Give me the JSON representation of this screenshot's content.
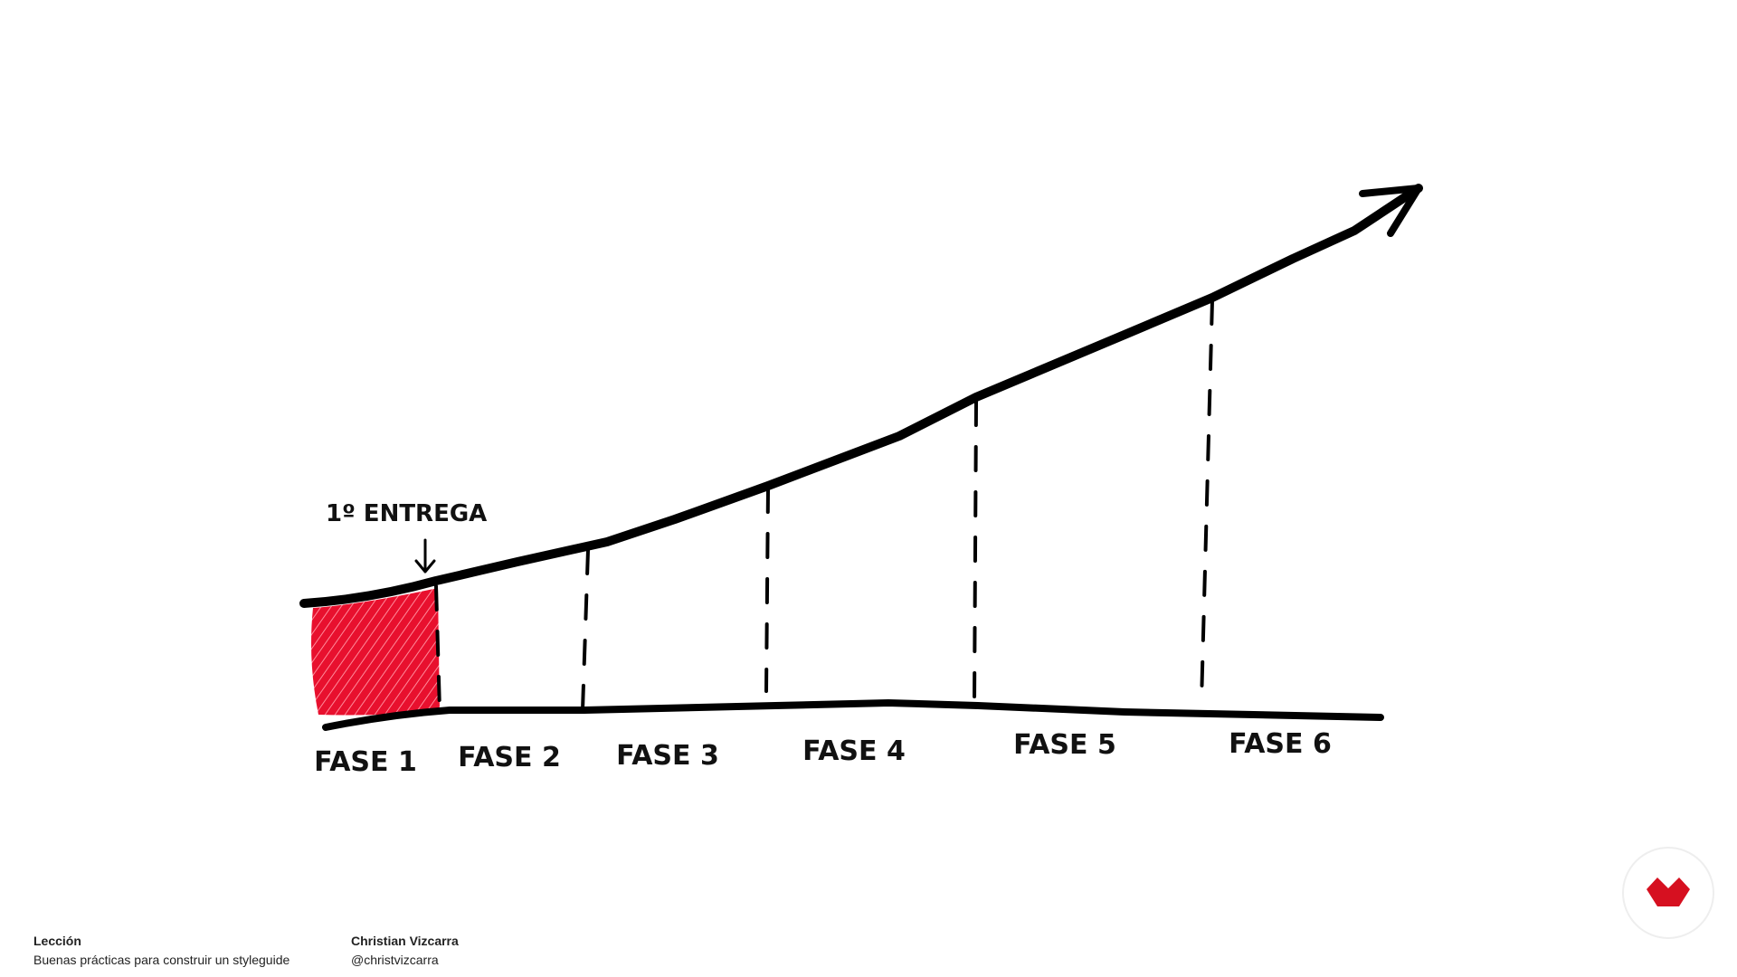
{
  "annotation": "1º ENTREGA",
  "phases": [
    "FASE 1",
    "FASE 2",
    "FASE 3",
    "FASE 4",
    "FASE 5",
    "FASE 6"
  ],
  "footer": {
    "lesson_label": "Lección",
    "lesson_title": "Buenas prácticas para construir un styleguide",
    "author": "Christian Vizcarra",
    "handle": "@christvizcarra"
  }
}
